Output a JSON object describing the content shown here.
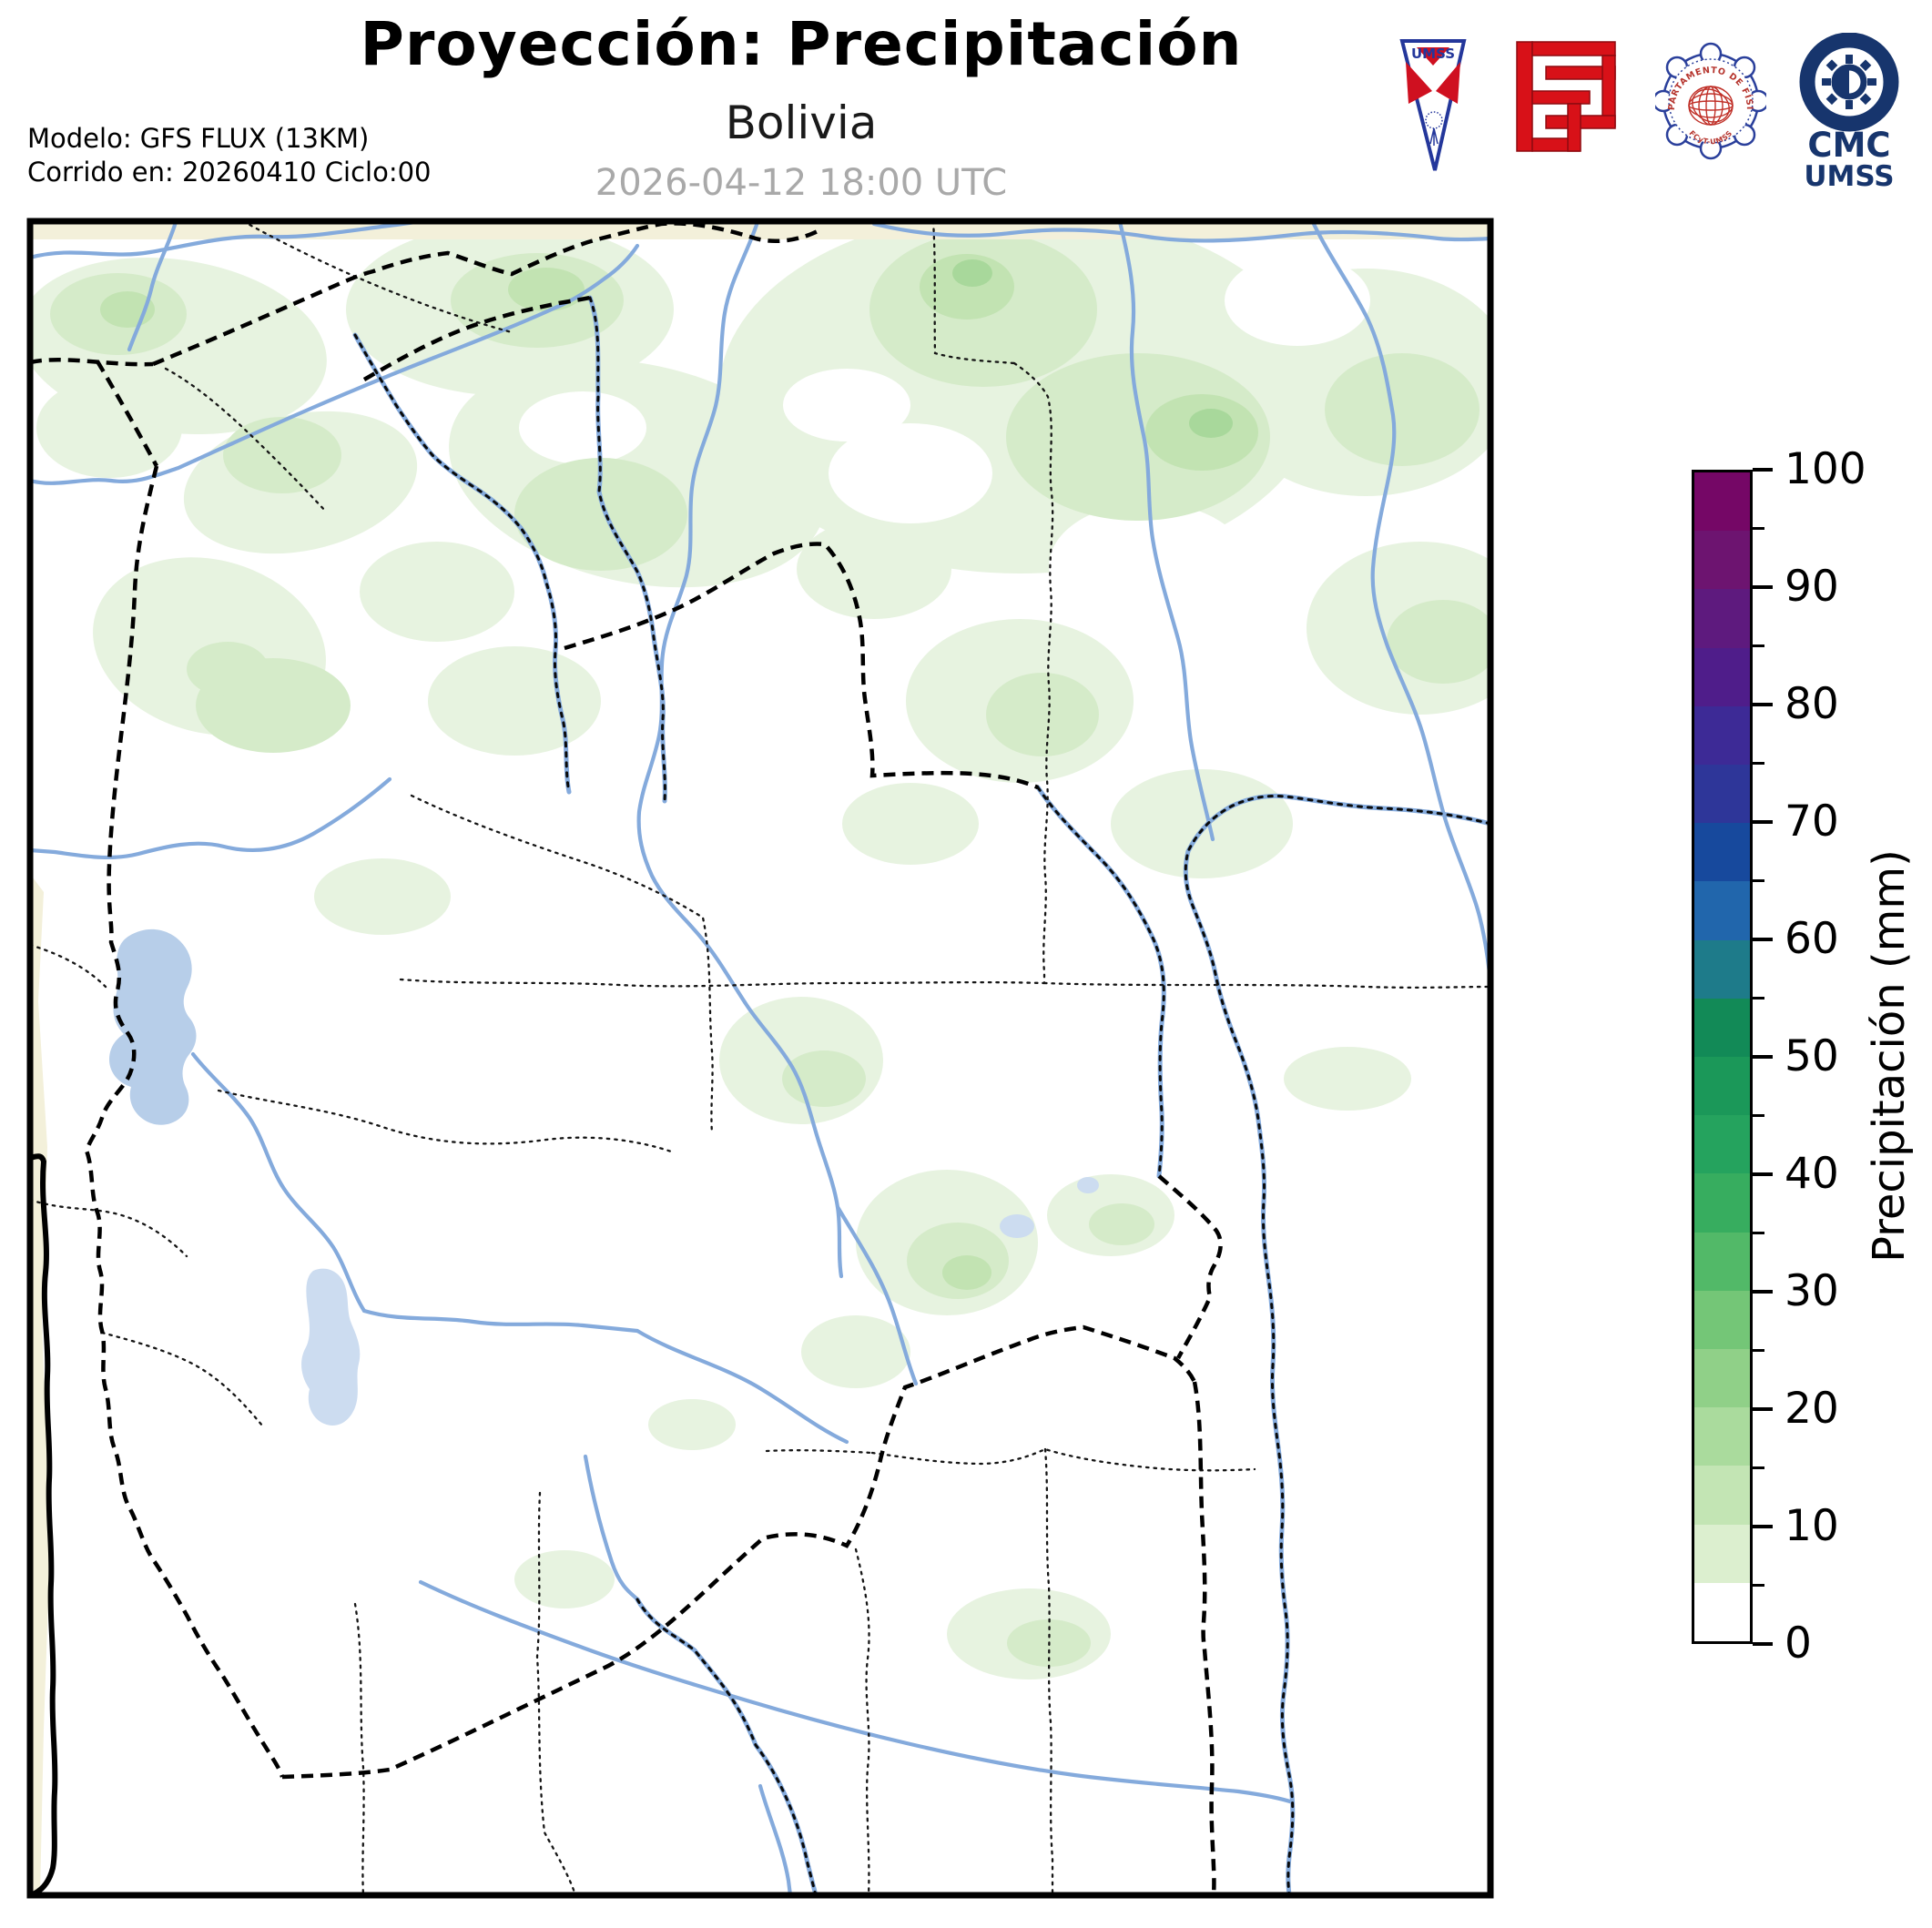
{
  "header": {
    "title": "Proyección: Precipitación",
    "subtitle": "Bolivia",
    "datetime": "2026-04-12 18:00 UTC",
    "model_line1": "Modelo: GFS FLUX (13KM)",
    "model_line2": "Corrido en: 20260410 Ciclo:00"
  },
  "logos": {
    "umss": {
      "label": "UMSS"
    },
    "fisica_seal": {
      "arc_top": "DEPARTAMENTO DE FÍSICA",
      "arc_bottom": "FCyT-UMSS"
    },
    "cmc": {
      "line1": "CMC",
      "line2": "UMSS"
    }
  },
  "map": {
    "region": "Bolivia",
    "colors": {
      "river": "#84aadc",
      "lake": "#b7cee9",
      "lake_light": "#ccdcf0",
      "outside_region": "#f3f0da",
      "border": "#000000",
      "precip_5_10": "#e7f3e0",
      "precip_10_15": "#d5ebc9",
      "precip_15_20": "#c2e3b2",
      "precip_20_25": "#a8d89b"
    }
  },
  "colorbar": {
    "label": "Precipitación (mm)",
    "min": 0,
    "max": 100,
    "segment_step": 5,
    "major_tick_step": 10,
    "major_ticks": [
      0,
      10,
      20,
      30,
      40,
      50,
      60,
      70,
      80,
      90,
      100
    ],
    "segment_colors_bottom_to_top": [
      "#ffffff",
      "#dcefcf",
      "#c3e5b4",
      "#aadb9d",
      "#90d088",
      "#74c677",
      "#52b968",
      "#37ad5f",
      "#25a35e",
      "#1b9859",
      "#128a57",
      "#1e7b8a",
      "#2166ac",
      "#17499d",
      "#2e3699",
      "#3d2a96",
      "#4f1d8a",
      "#5e1a7e",
      "#6d1470",
      "#750766"
    ]
  },
  "chart_data": {
    "type": "heatmap",
    "title": "Proyección: Precipitación",
    "region": "Bolivia",
    "valid_time": "2026-04-12 18:00 UTC",
    "model": "GFS FLUX (13KM)",
    "run": "20260410 Ciclo:00",
    "colorbar_label": "Precipitación (mm)",
    "scale_range": [
      0,
      100
    ],
    "scale_step": 5,
    "legend_position": "right",
    "map_shading_note": "light green precipitation (approx. 5-25 mm) concentrated over northern Bolivia"
  }
}
